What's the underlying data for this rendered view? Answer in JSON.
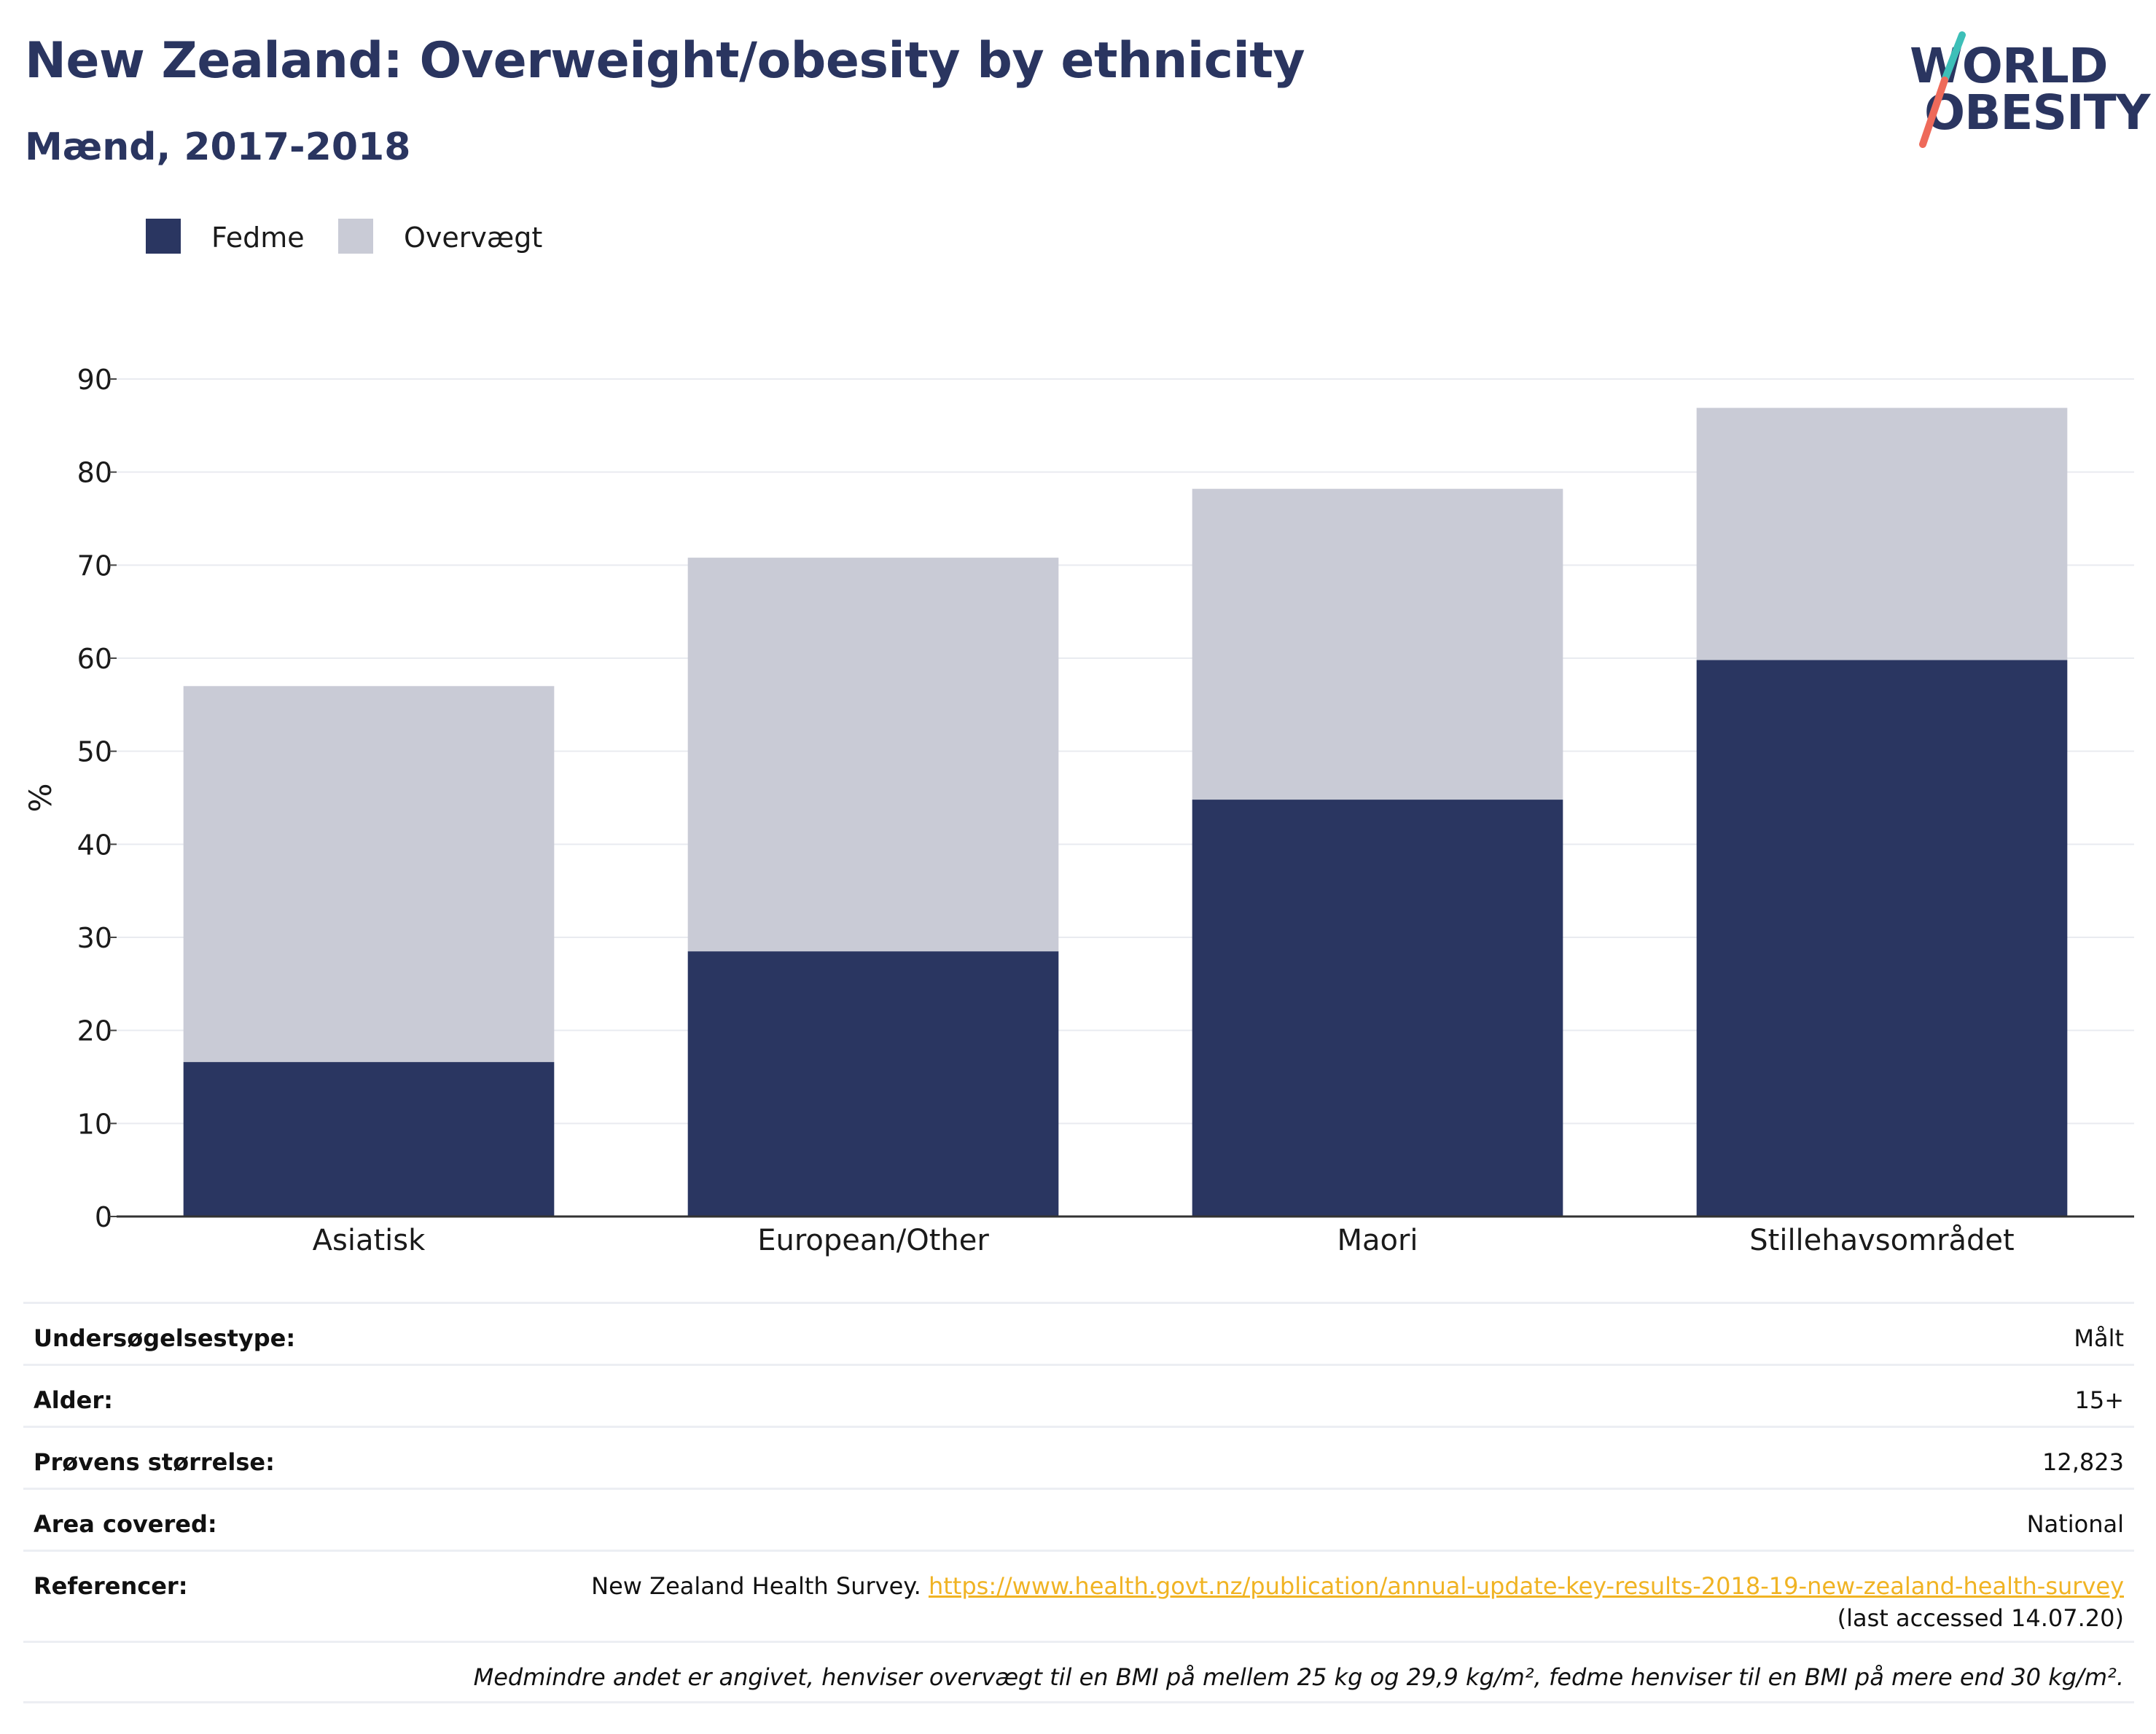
{
  "header": {
    "title": "New Zealand: Overweight/obesity by ethnicity",
    "subtitle": "Mænd, 2017-2018",
    "logo_line1": "WORLD",
    "logo_line2": "OBESITY"
  },
  "colors": {
    "title": "#2a3560",
    "fedme": "#2a3661",
    "overvaegt": "#c9cbd6",
    "link": "#f0b323",
    "logo_teal": "#3dbfb8",
    "logo_coral": "#ee6a5a"
  },
  "legend": {
    "items": [
      {
        "label": "Fedme",
        "color": "#2a3661"
      },
      {
        "label": "Overvægt",
        "color": "#c9cbd6"
      }
    ]
  },
  "chart_data": {
    "type": "bar",
    "stacked": true,
    "categories": [
      "Asiatisk",
      "European/Other",
      "Maori",
      "Stillehavsområdet"
    ],
    "series": [
      {
        "name": "Fedme",
        "values": [
          16.6,
          28.5,
          44.8,
          59.8
        ],
        "color": "#2a3661"
      },
      {
        "name": "Overvægt",
        "values": [
          40.4,
          42.3,
          33.4,
          27.1
        ],
        "color": "#c9cbd6"
      }
    ],
    "ylabel": "%",
    "ylim": [
      0,
      90
    ],
    "yticks": [
      0,
      10,
      20,
      30,
      40,
      50,
      60,
      70,
      80,
      90
    ],
    "grid": true,
    "legend_position": "top-left"
  },
  "info": {
    "survey_type_label": "Undersøgelsestype:",
    "survey_type_value": "Målt",
    "age_label": "Alder:",
    "age_value": "15+",
    "sample_label": "Prøvens størrelse:",
    "sample_value": "12,823",
    "area_label": "Area covered:",
    "area_value": "National",
    "ref_label": "Referencer:",
    "ref_text": "New Zealand Health Survey.",
    "ref_link": "https://www.health.govt.nz/publication/annual-update-key-results-2018-19-new-zealand-health-survey",
    "ref_accessed": "(last accessed 14.07.20)",
    "note": "Medmindre andet er angivet, henviser overvægt til en BMI på mellem 25 kg og 29,9 kg/m², fedme henviser til en BMI på mere end 30 kg/m²."
  }
}
